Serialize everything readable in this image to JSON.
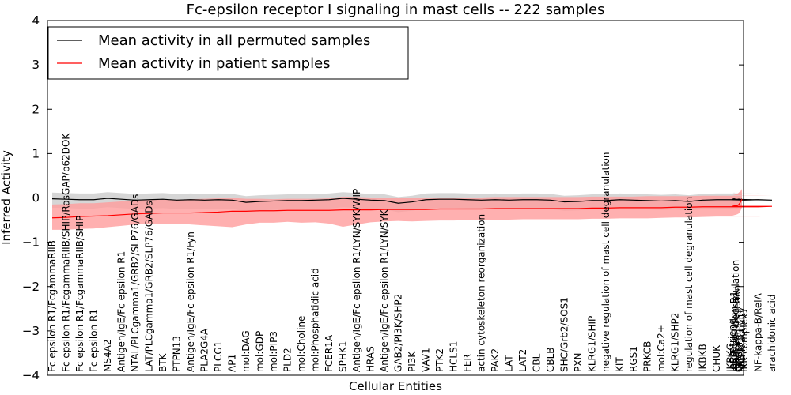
{
  "chart_data": {
    "type": "line",
    "title": "Fc-epsilon receptor I signaling in mast cells -- 222 samples",
    "xlabel": "Cellular Entities",
    "ylabel": "Inferred Activity",
    "ylim": [
      -4,
      4
    ],
    "yticks": [
      -4,
      -3,
      -2,
      -1,
      0,
      1,
      2,
      3,
      4
    ],
    "grid": false,
    "legend_position": "top-left",
    "reference_line": 0,
    "categories": [
      "Fc epsilon R1/FcgammaRIIB",
      "Fc epsilon R1/FcgammaRIIB/SHIP/RasGAP/p62DOK",
      "Fc epsilon R1/FcgammaRIIB/SHIP",
      "Fc epsilon R1",
      "MS4A2",
      "Antigen/IgE/Fc epsilon R1",
      "NTAL/PLCgamma1/GRB2/SLP76/GADs",
      "LAT/PLCgamma1/GRB2/SLP76/GADs",
      "BTK",
      "PTPN13",
      "Antigen/IgE/Fc epsilon R1/Fyn",
      "PLA2G4A",
      "PLCG1",
      "AP1",
      "mol:DAG",
      "mol:GDP",
      "mol:PIP3",
      "PLD2",
      "mol:Choline",
      "mol:Phosphatidic acid",
      "FCER1A",
      "SPHK1",
      "Antigen/IgE/Fc epsilon R1/LYN/SYK/WIP",
      "HRAS",
      "Antigen/IgE/Fc epsilon R1/LYN/SYK",
      "GAB2/PI3K/SHP2",
      "PI3K",
      "VAV1",
      "PTK2",
      "HCLS1",
      "FER",
      "actin cytoskeleton reorganization",
      "PAK2",
      "LAT",
      "LAT2",
      "CBL",
      "CBLB",
      "SHC/Grb2/SOS1",
      "PXN",
      "KLRG1/SHIP",
      "negative regulation of mast cell degranulation",
      "KIT",
      "RGS1",
      "PRKCB",
      "mol:Ca2+",
      "KLRG1/SHP2",
      "regulation of mast cell degranulation",
      "IKBKB",
      "CHUK",
      "IKBKG",
      "IKK complex",
      "NF-kappa-B/RelA",
      "arachidonic acid",
      "leukotriene",
      "IgE/Fc epsilon R1",
      "mast cell degranulation",
      "cytokine secretion",
      "calcium",
      "PKC",
      "MAPK activity"
    ],
    "series": [
      {
        "name": "Mean activity in all permuted samples",
        "color": "#000000",
        "values": [
          -0.02,
          -0.03,
          -0.04,
          -0.04,
          -0.01,
          -0.03,
          -0.05,
          -0.04,
          -0.03,
          -0.05,
          -0.04,
          -0.05,
          -0.04,
          -0.05,
          -0.1,
          -0.08,
          -0.07,
          -0.06,
          -0.06,
          -0.05,
          -0.04,
          -0.01,
          -0.03,
          -0.05,
          -0.06,
          -0.12,
          -0.09,
          -0.04,
          -0.03,
          -0.03,
          -0.04,
          -0.05,
          -0.04,
          -0.05,
          -0.04,
          -0.04,
          -0.05,
          -0.09,
          -0.08,
          -0.06,
          -0.06,
          -0.04,
          -0.05,
          -0.06,
          -0.07,
          -0.06,
          -0.08,
          -0.05,
          -0.04,
          -0.04,
          -0.05,
          -0.04,
          -0.05,
          -0.03,
          -0.02,
          -0.03,
          -0.04,
          -0.03,
          -0.04,
          -0.03
        ],
        "band": {
          "color": "#c8c8c8",
          "lower": [
            -0.22,
            -0.23,
            -0.24,
            -0.24,
            -0.21,
            -0.23,
            -0.25,
            -0.24,
            -0.23,
            -0.25,
            -0.24,
            -0.25,
            -0.24,
            -0.25,
            -0.3,
            -0.28,
            -0.27,
            -0.26,
            -0.26,
            -0.25,
            -0.24,
            -0.21,
            -0.23,
            -0.25,
            -0.26,
            -0.32,
            -0.29,
            -0.24,
            -0.23,
            -0.23,
            -0.24,
            -0.25,
            -0.24,
            -0.25,
            -0.24,
            -0.24,
            -0.25,
            -0.29,
            -0.28,
            -0.26,
            -0.26,
            -0.24,
            -0.25,
            -0.26,
            -0.27,
            -0.26,
            -0.28,
            -0.25,
            -0.24,
            -0.24,
            -0.25,
            -0.24,
            -0.25,
            -0.23,
            -0.22,
            -0.23,
            -0.24,
            -0.23,
            -0.24,
            -0.23
          ],
          "upper": [
            0.12,
            0.11,
            0.1,
            0.1,
            0.13,
            0.11,
            0.09,
            0.1,
            0.11,
            0.09,
            0.1,
            0.09,
            0.1,
            0.09,
            0.04,
            0.06,
            0.07,
            0.08,
            0.08,
            0.09,
            0.1,
            0.13,
            0.11,
            0.09,
            0.08,
            0.02,
            0.05,
            0.1,
            0.11,
            0.11,
            0.1,
            0.09,
            0.1,
            0.09,
            0.1,
            0.1,
            0.09,
            0.05,
            0.06,
            0.08,
            0.08,
            0.1,
            0.09,
            0.08,
            0.07,
            0.08,
            0.06,
            0.09,
            0.1,
            0.1,
            0.09,
            0.1,
            0.09,
            0.11,
            0.12,
            0.11,
            0.1,
            0.11,
            0.15,
            0.1
          ]
        }
      },
      {
        "name": "Mean activity in patient samples",
        "color": "#ff0000",
        "values": [
          -0.45,
          -0.44,
          -0.42,
          -0.41,
          -0.4,
          -0.38,
          -0.36,
          -0.35,
          -0.34,
          -0.34,
          -0.34,
          -0.33,
          -0.32,
          -0.3,
          -0.3,
          -0.29,
          -0.29,
          -0.28,
          -0.28,
          -0.28,
          -0.28,
          -0.27,
          -0.27,
          -0.27,
          -0.26,
          -0.26,
          -0.26,
          -0.26,
          -0.25,
          -0.25,
          -0.25,
          -0.25,
          -0.24,
          -0.24,
          -0.24,
          -0.24,
          -0.24,
          -0.24,
          -0.24,
          -0.23,
          -0.23,
          -0.22,
          -0.22,
          -0.22,
          -0.22,
          -0.21,
          -0.21,
          -0.2,
          -0.2,
          -0.2,
          -0.2,
          -0.2,
          -0.19,
          -0.19,
          -0.18,
          -0.18,
          -0.17,
          -0.15,
          -0.1,
          -0.03
        ],
        "band": {
          "color": "#ff9c9c",
          "lower": [
            -0.72,
            -0.72,
            -0.7,
            -0.69,
            -0.66,
            -0.63,
            -0.6,
            -0.59,
            -0.58,
            -0.58,
            -0.6,
            -0.62,
            -0.64,
            -0.66,
            -0.6,
            -0.56,
            -0.56,
            -0.54,
            -0.56,
            -0.55,
            -0.58,
            -0.65,
            -0.6,
            -0.55,
            -0.53,
            -0.52,
            -0.53,
            -0.52,
            -0.51,
            -0.51,
            -0.5,
            -0.5,
            -0.49,
            -0.49,
            -0.48,
            -0.48,
            -0.48,
            -0.48,
            -0.48,
            -0.47,
            -0.47,
            -0.46,
            -0.46,
            -0.46,
            -0.45,
            -0.44,
            -0.44,
            -0.43,
            -0.42,
            -0.42,
            -0.42,
            -0.42,
            -0.41,
            -0.4,
            -0.39,
            -0.38,
            -0.37,
            -0.35,
            -0.3,
            -0.2
          ],
          "upper": [
            -0.15,
            -0.14,
            -0.12,
            -0.12,
            -0.1,
            -0.08,
            -0.06,
            -0.05,
            -0.04,
            -0.04,
            -0.03,
            -0.02,
            -0.01,
            0.0,
            -0.02,
            -0.02,
            -0.03,
            -0.02,
            -0.02,
            -0.02,
            -0.01,
            0.03,
            0.02,
            0.01,
            0.01,
            0.0,
            0.0,
            0.01,
            0.01,
            0.01,
            0.01,
            0.01,
            0.02,
            0.02,
            0.02,
            0.02,
            0.02,
            0.02,
            0.02,
            0.03,
            0.03,
            0.03,
            0.03,
            0.04,
            0.04,
            0.04,
            0.04,
            0.05,
            0.05,
            0.05,
            0.05,
            0.05,
            0.05,
            0.06,
            0.07,
            0.08,
            0.09,
            0.12,
            0.15,
            0.2
          ]
        }
      }
    ]
  }
}
